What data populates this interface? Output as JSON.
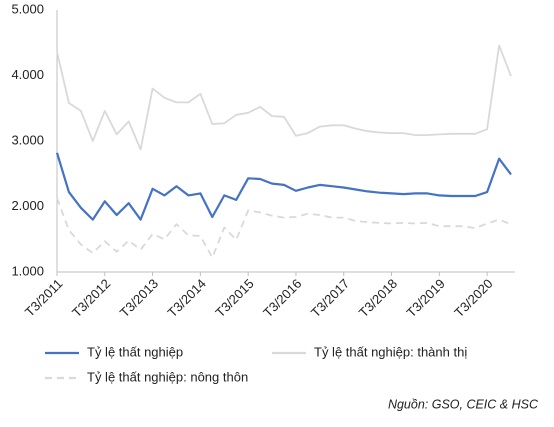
{
  "chart_data": {
    "type": "line",
    "categories": [
      "T3/2011",
      null,
      null,
      null,
      "T3/2012",
      null,
      null,
      null,
      "T3/2013",
      null,
      null,
      null,
      "T3/2014",
      null,
      null,
      null,
      "T3/2015",
      null,
      null,
      null,
      "T3/2016",
      null,
      null,
      null,
      "T3/2017",
      null,
      null,
      null,
      "T3/2018",
      null,
      null,
      null,
      "T3/2019",
      null,
      null,
      null,
      "T3/2020",
      null,
      null
    ],
    "series": [
      {
        "name": "Tỷ lệ thất nghiệp",
        "color": "#4472c4",
        "dash": false,
        "values": [
          2.82,
          2.22,
          1.98,
          1.8,
          2.08,
          1.87,
          2.05,
          1.8,
          2.27,
          2.17,
          2.31,
          2.17,
          2.2,
          1.84,
          2.17,
          2.1,
          2.43,
          2.42,
          2.35,
          2.33,
          2.24,
          2.29,
          2.33,
          2.31,
          2.29,
          2.26,
          2.23,
          2.21,
          2.2,
          2.19,
          2.2,
          2.2,
          2.17,
          2.16,
          2.16,
          2.16,
          2.22,
          2.73,
          2.49
        ]
      },
      {
        "name": "Tỷ lệ thất nghiệp: thành thị",
        "color": "#d9d9d9",
        "dash": false,
        "values": [
          4.36,
          3.58,
          3.46,
          3.0,
          3.46,
          3.1,
          3.3,
          2.87,
          3.8,
          3.66,
          3.59,
          3.59,
          3.72,
          3.26,
          3.27,
          3.4,
          3.43,
          3.52,
          3.38,
          3.37,
          3.08,
          3.12,
          3.22,
          3.24,
          3.24,
          3.19,
          3.15,
          3.13,
          3.12,
          3.12,
          3.09,
          3.09,
          3.1,
          3.11,
          3.11,
          3.11,
          3.18,
          4.46,
          3.99
        ]
      },
      {
        "name": "Tỷ lệ thất nghiệp: nông thôn",
        "color": "#d9d9d9",
        "dash": true,
        "values": [
          2.13,
          1.64,
          1.42,
          1.29,
          1.47,
          1.31,
          1.48,
          1.34,
          1.58,
          1.5,
          1.73,
          1.56,
          1.55,
          1.22,
          1.68,
          1.49,
          1.94,
          1.91,
          1.86,
          1.83,
          1.84,
          1.89,
          1.87,
          1.83,
          1.83,
          1.78,
          1.76,
          1.75,
          1.74,
          1.75,
          1.74,
          1.75,
          1.7,
          1.7,
          1.7,
          1.67,
          1.74,
          1.8,
          1.73
        ]
      }
    ],
    "ylim": [
      1,
      5
    ],
    "yticks": [
      {
        "value": 1,
        "label": "1.000"
      },
      {
        "value": 2,
        "label": "2.000"
      },
      {
        "value": 3,
        "label": "3.000"
      },
      {
        "value": 4,
        "label": "4.000"
      },
      {
        "value": 5,
        "label": "5.000"
      }
    ],
    "grid": false,
    "legend": "bottom",
    "source": "Nguồn: GSO, CEIC & HSC"
  }
}
